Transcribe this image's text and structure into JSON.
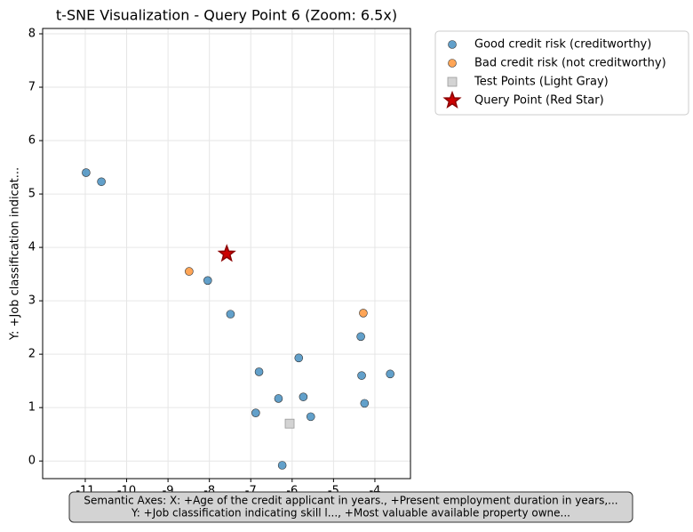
{
  "chart_data": {
    "type": "scatter",
    "title": "t-SNE Visualization - Query Point 6 (Zoom: 6.5x)",
    "ylabel": "Y: +Job classification indicat...",
    "annotation": [
      "Semantic Axes: X: +Age of the credit applicant in years., +Present employment duration in years,...",
      "Y: +Job classification indicating skill l..., +Most valuable available property owne..."
    ],
    "xlim": [
      -12.03,
      -3.14
    ],
    "ylim": [
      -0.33,
      8.1
    ],
    "xticks": [
      -11,
      -10,
      -9,
      -8,
      -7,
      -6,
      -5,
      -4
    ],
    "yticks": [
      0,
      1,
      2,
      3,
      4,
      5,
      6,
      7,
      8
    ],
    "grid": true,
    "legend": "outside upper right",
    "series": [
      {
        "name": "Good credit risk (creditworthy)",
        "color": "#1f77b4",
        "marker": "circle",
        "x": [
          -10.98,
          -10.61,
          -8.04,
          -7.49,
          -6.8,
          -5.84,
          -4.34,
          -4.32,
          -3.63,
          -4.25,
          -6.33,
          -5.73,
          -5.55,
          -6.88,
          -6.24
        ],
        "values": [
          5.4,
          5.23,
          3.38,
          2.75,
          1.67,
          1.93,
          2.33,
          1.6,
          1.63,
          1.08,
          1.17,
          1.2,
          0.83,
          0.9,
          -0.08
        ]
      },
      {
        "name": "Bad credit risk (not creditworthy)",
        "color": "#ff7f0e",
        "marker": "circle",
        "x": [
          -8.49,
          -4.28
        ],
        "values": [
          3.55,
          2.77
        ]
      },
      {
        "name": "Test Points (Light Gray)",
        "color": "#d3d3d3",
        "marker": "square",
        "x": [
          -6.06
        ],
        "values": [
          0.7
        ]
      },
      {
        "name": "Query Point (Red Star)",
        "color": "#cc0000",
        "marker": "star",
        "x": [
          -7.58
        ],
        "values": [
          3.88
        ]
      }
    ]
  }
}
